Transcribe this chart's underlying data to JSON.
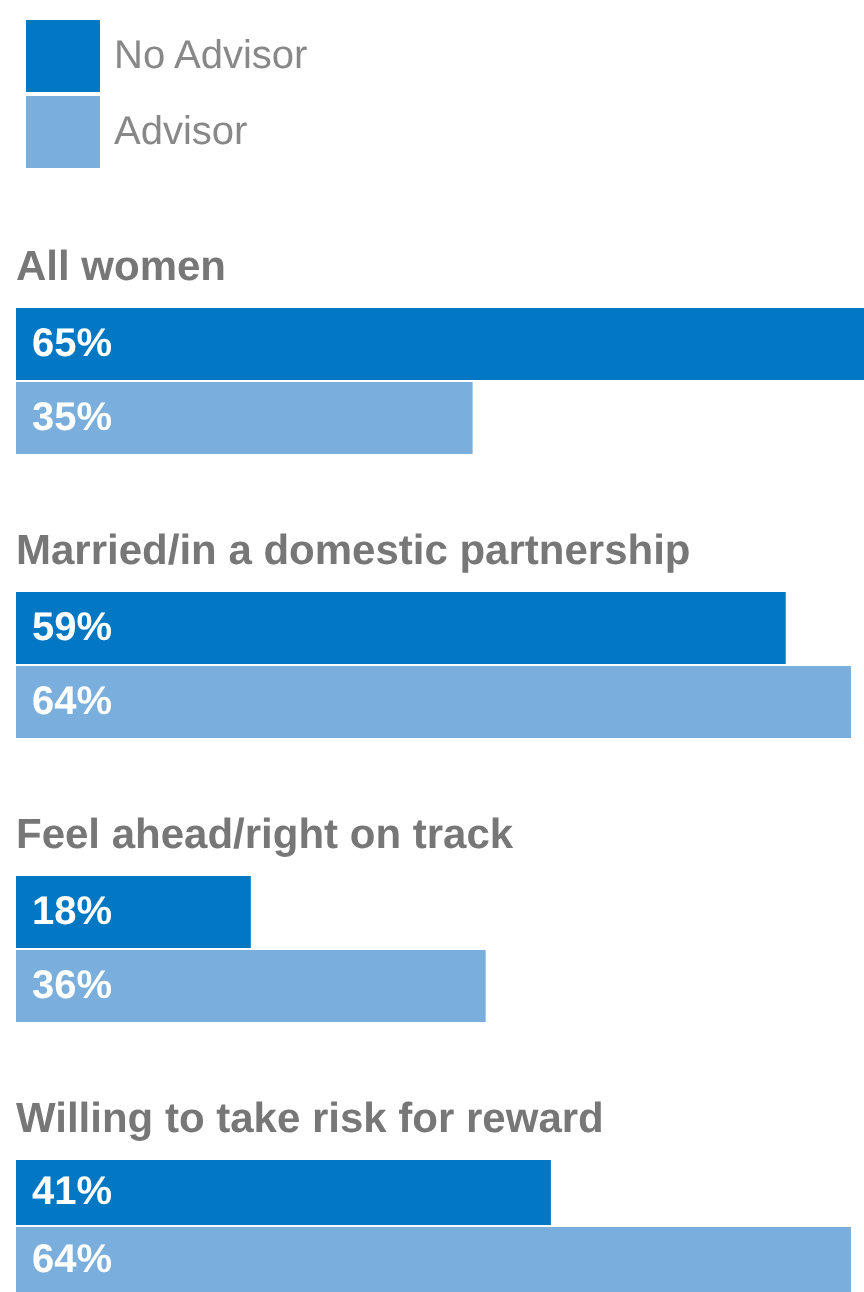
{
  "chart_data": {
    "type": "bar",
    "orientation": "horizontal",
    "categories": [
      "All women",
      "Married/in a domestic partnership",
      "Feel ahead/right on track",
      "Willing to take risk for reward"
    ],
    "series": [
      {
        "name": "No Advisor",
        "color": "#0277c4",
        "values": [
          65,
          59,
          18,
          41
        ],
        "value_labels": [
          "65%",
          "59%",
          "18%",
          "41%"
        ]
      },
      {
        "name": "Advisor",
        "color": "#7aaedc",
        "values": [
          35,
          64,
          36,
          64
        ],
        "value_labels": [
          "35%",
          "64%",
          "36%",
          "64%"
        ]
      }
    ],
    "legend": "top left"
  }
}
